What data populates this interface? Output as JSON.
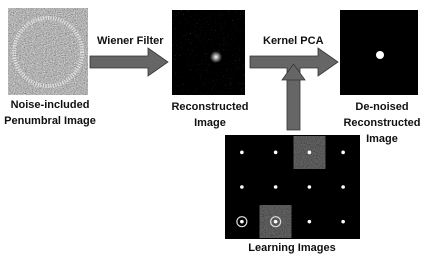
{
  "arrows": {
    "first": "Wiener Filter",
    "second": "Kernel PCA"
  },
  "images": [
    {
      "caption": [
        "Noise-included",
        "Penumbral Image"
      ]
    },
    {
      "caption": [
        "Reconstructed",
        "Image"
      ]
    },
    {
      "caption": [
        "De-noised",
        "Reconstructed",
        "Image"
      ]
    }
  ],
  "learning": {
    "caption": "Learning Images"
  }
}
